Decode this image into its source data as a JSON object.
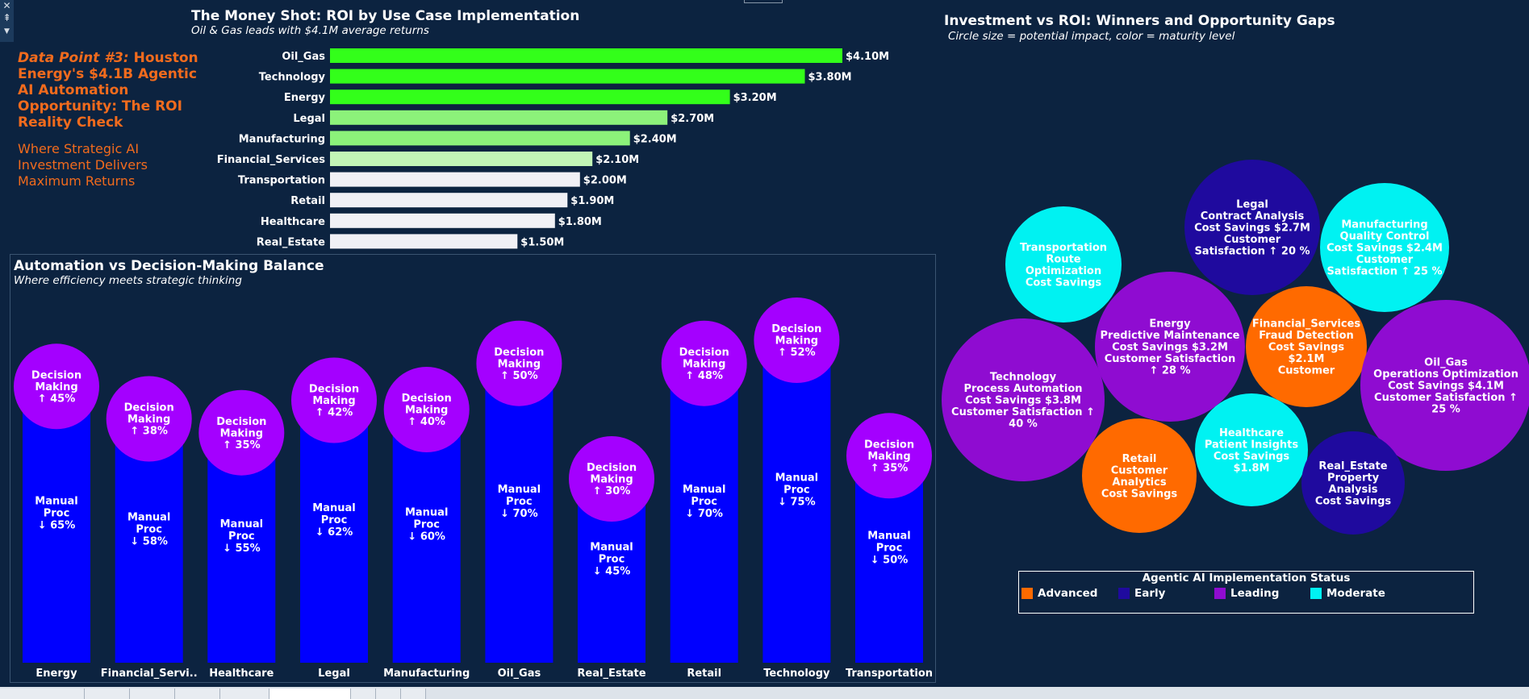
{
  "intro": {
    "lead": "Data Point #3:",
    "title": "Houston Energy's $4.1B Agentic AI Automation Opportunity: The ROI Reality Check",
    "subtitle": "Where Strategic AI Investment Delivers Maximum Returns"
  },
  "colors": {
    "background": "#0c2340",
    "roi_bars": [
      "#33ff1a",
      "#33ff1a",
      "#33ff1a",
      "#8cf27a",
      "#8cf27a",
      "#c2f5b6",
      "#f0f0f5",
      "#f0f0f5",
      "#f0f0f5",
      "#f0f0f5"
    ],
    "manual_bar": "#0000ff",
    "decision_bubble": "#a400ff",
    "advanced": "#ff6a00",
    "early": "#1f0a9e",
    "leading": "#8f0cd1",
    "moderate": "#00f2f2"
  },
  "chart_data": [
    {
      "type": "bar",
      "orientation": "horizontal",
      "title": "The Money Shot: ROI by Use Case Implementation",
      "subtitle": "Oil & Gas leads with $4.1M average returns",
      "categories": [
        "Oil_Gas",
        "Technology",
        "Energy",
        "Legal",
        "Manufacturing",
        "Financial_Services",
        "Transportation",
        "Retail",
        "Healthcare",
        "Real_Estate"
      ],
      "values": [
        4.1,
        3.8,
        3.2,
        2.7,
        2.4,
        2.1,
        2.0,
        1.9,
        1.8,
        1.5
      ],
      "labels": [
        "$4.10M",
        "$3.80M",
        "$3.20M",
        "$2.70M",
        "$2.40M",
        "$2.10M",
        "$2.00M",
        "$1.90M",
        "$1.80M",
        "$1.50M"
      ],
      "xlim": [
        0,
        4.1
      ],
      "grid": false
    },
    {
      "type": "bar",
      "title": "Automation vs Decision-Making Balance",
      "subtitle": "Where efficiency meets strategic thinking",
      "categories": [
        "Energy",
        "Financial_Servi..",
        "Healthcare",
        "Legal",
        "Manufacturing",
        "Oil_Gas",
        "Real_Estate",
        "Retail",
        "Technology",
        "Transportation"
      ],
      "series": [
        {
          "values": [
            65,
            58,
            55,
            62,
            60,
            70,
            45,
            70,
            75,
            50
          ],
          "labels": [
            "Manual Proc ↓ 65%",
            "Manual Proc ↓ 58%",
            "Manual Proc ↓ 55%",
            "Manual Proc ↓ 62%",
            "Manual Proc ↓ 60%",
            "Manual Proc ↓ 70%",
            "Manual Proc ↓ 45%",
            "Manual Proc ↓ 70%",
            "Manual Proc ↓ 75%",
            "Manual Proc ↓ 50%"
          ]
        },
        {
          "values": [
            45,
            38,
            35,
            42,
            40,
            50,
            30,
            48,
            52,
            35
          ],
          "labels": [
            "Decision Making ↑ 45%",
            "Decision Making ↑ 38%",
            "Decision Making ↑ 35%",
            "Decision Making ↑ 42%",
            "Decision Making ↑ 40%",
            "Decision Making ↑ 50%",
            "Decision Making ↑ 30%",
            "Decision Making ↑ 48%",
            "Decision Making ↑ 52%",
            "Decision Making ↑ 35%"
          ]
        }
      ],
      "ylim": [
        0,
        75
      ],
      "grid": false
    },
    {
      "type": "scatter",
      "subtype": "bubble",
      "title": "Investment vs ROI: Winners and Opportunity Gaps",
      "subtitle": "Circle size = potential impact, color = maturity level",
      "legend_title": "Agentic AI Implementation Status",
      "legend_placement": "bottom",
      "legend": [
        {
          "label": "Advanced",
          "status": "advanced"
        },
        {
          "label": "Early",
          "status": "early"
        },
        {
          "label": "Leading",
          "status": "leading"
        },
        {
          "label": "Moderate",
          "status": "moderate"
        }
      ],
      "points": [
        {
          "label": [
            "Transportation",
            "Route",
            "Optimization",
            "Cost Savings"
          ],
          "status": "moderate",
          "value": 2.0
        },
        {
          "label": [
            "Legal",
            "Contract Analysis",
            "Cost Savings $2.7M",
            "Customer",
            "Satisfaction ↑  20 %"
          ],
          "status": "early",
          "value": 2.7
        },
        {
          "label": [
            "Manufacturing",
            "Quality Control",
            "Cost Savings $2.4M",
            "Customer",
            "Satisfaction ↑  25 %"
          ],
          "status": "moderate",
          "value": 2.4
        },
        {
          "label": [
            "Energy",
            "Predictive Maintenance",
            "Cost Savings $3.2M",
            "Customer Satisfaction",
            "↑  28 %"
          ],
          "status": "leading",
          "value": 3.2
        },
        {
          "label": [
            "Financial_Services",
            "Fraud Detection",
            "Cost Savings",
            "$2.1M",
            "Customer"
          ],
          "status": "advanced",
          "value": 2.1
        },
        {
          "label": [
            "Technology",
            "Process Automation",
            "Cost Savings $3.8M",
            "Customer Satisfaction ↑",
            "40 %"
          ],
          "status": "leading",
          "value": 3.8
        },
        {
          "label": [
            "Oil_Gas",
            "Operations Optimization",
            "Cost Savings $4.1M",
            "Customer Satisfaction ↑",
            "25 %"
          ],
          "status": "leading",
          "value": 4.1
        },
        {
          "label": [
            "Retail",
            "Customer",
            "Analytics",
            "Cost Savings"
          ],
          "status": "advanced",
          "value": 1.9
        },
        {
          "label": [
            "Healthcare",
            "Patient Insights",
            "Cost Savings",
            "$1.8M"
          ],
          "status": "moderate",
          "value": 1.8
        },
        {
          "label": [
            "Real_Estate",
            "Property",
            "Analysis",
            "Cost Savings"
          ],
          "status": "early",
          "value": 1.5
        }
      ]
    }
  ]
}
